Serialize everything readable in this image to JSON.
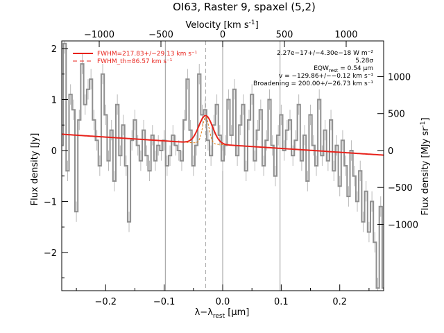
{
  "chart_data": {
    "type": "line",
    "title": "OI63, Raster 9, spaxel (5,2)",
    "xlabel": "λ−λ",
    "xlabel_sub": "rest",
    "xlabel_unit": "[μm]",
    "ylabel_left": "Flux density [Jy]",
    "ylabel_right": "Flux density [MJy sr",
    "ylabel_right_sup": "-1",
    "ylabel_right_tail": "]",
    "x2label": "Velocity [km s",
    "x2label_sup": "-1",
    "x2label_tail": "]",
    "xlim": [
      -0.275,
      0.275
    ],
    "ylim": [
      -2.75,
      2.15
    ],
    "x_ticks": [
      {
        "v": -0.2,
        "label": "−0.2"
      },
      {
        "v": -0.1,
        "label": "−0.1"
      },
      {
        "v": 0.0,
        "label": "0.0"
      },
      {
        "v": 0.1,
        "label": "0.1"
      },
      {
        "v": 0.2,
        "label": "0.2"
      }
    ],
    "y_ticks": [
      {
        "v": 2,
        "label": "2"
      },
      {
        "v": 1,
        "label": "1"
      },
      {
        "v": 0,
        "label": "0"
      },
      {
        "v": -1,
        "label": "−1"
      },
      {
        "v": -2,
        "label": "−2"
      }
    ],
    "x2_ticks": [
      {
        "v": -1000,
        "label": "−1000"
      },
      {
        "v": -500,
        "label": "−500"
      },
      {
        "v": 0,
        "label": "0"
      },
      {
        "v": 500,
        "label": "500"
      },
      {
        "v": 1000,
        "label": "1000"
      }
    ],
    "x2_per_micron": 4740,
    "y2_ticks": [
      {
        "v": 1000,
        "label": "1000"
      },
      {
        "v": 500,
        "label": "500"
      },
      {
        "v": 0,
        "label": "0"
      },
      {
        "v": -500,
        "label": "−500"
      },
      {
        "v": -1000,
        "label": "−1000"
      }
    ],
    "y2_per_jy": 690,
    "vertical_lines": [
      -0.098,
      0.0,
      0.098
    ],
    "dashed_line": -0.029,
    "legend": [
      {
        "label": "FWHM=217.83+/−29.13 km s⁻¹",
        "style": "solid",
        "color": "#e8221b"
      },
      {
        "label": "FWHM_th=86.57 km s⁻¹",
        "style": "dashed",
        "color": "#e8221b"
      }
    ],
    "annotations": [
      "2.27e−17+/−4.30e−18 W m⁻²",
      "5.28σ",
      "EQW",
      "rest",
      " = 0.54 μm",
      "v = −129.86+/−−0.12 km s⁻¹",
      "Broadening = 200.00+/−26.73 km s⁻¹"
    ],
    "spectrum": {
      "name": "data",
      "x": [
        -0.275,
        -0.27,
        -0.265,
        -0.26,
        -0.255,
        -0.25,
        -0.245,
        -0.24,
        -0.235,
        -0.23,
        -0.225,
        -0.22,
        -0.215,
        -0.21,
        -0.205,
        -0.2,
        -0.195,
        -0.19,
        -0.185,
        -0.18,
        -0.175,
        -0.17,
        -0.165,
        -0.16,
        -0.155,
        -0.15,
        -0.145,
        -0.14,
        -0.135,
        -0.13,
        -0.125,
        -0.12,
        -0.115,
        -0.11,
        -0.105,
        -0.1,
        -0.095,
        -0.09,
        -0.085,
        -0.08,
        -0.075,
        -0.07,
        -0.065,
        -0.06,
        -0.055,
        -0.05,
        -0.045,
        -0.04,
        -0.035,
        -0.03,
        -0.025,
        -0.02,
        -0.015,
        -0.01,
        -0.005,
        0.0,
        0.005,
        0.01,
        0.015,
        0.02,
        0.025,
        0.03,
        0.035,
        0.04,
        0.045,
        0.05,
        0.055,
        0.06,
        0.065,
        0.07,
        0.075,
        0.08,
        0.085,
        0.09,
        0.095,
        0.1,
        0.105,
        0.11,
        0.115,
        0.12,
        0.125,
        0.13,
        0.135,
        0.14,
        0.145,
        0.15,
        0.155,
        0.16,
        0.165,
        0.17,
        0.175,
        0.18,
        0.185,
        0.19,
        0.195,
        0.2,
        0.205,
        0.21,
        0.215,
        0.22,
        0.225,
        0.23,
        0.235,
        0.24,
        0.245,
        0.25,
        0.255,
        0.26,
        0.265,
        0.27,
        0.275
      ],
      "y": [
        0.1,
        2.1,
        -0.4,
        1.1,
        0.8,
        -1.2,
        0.6,
        1.7,
        0.9,
        1.2,
        1.4,
        0.6,
        0.2,
        -0.3,
        1.5,
        0.7,
        -0.2,
        0.4,
        -0.6,
        0.9,
        -0.1,
        0.5,
        -0.3,
        -1.4,
        0.2,
        0.6,
        0.1,
        -0.2,
        0.4,
        -0.1,
        -0.4,
        0.3,
        -0.2,
        0.1,
        0.0,
        0.2,
        -0.3,
        -0.1,
        0.3,
        0.1,
        0.0,
        -0.2,
        0.6,
        1.4,
        0.4,
        -0.3,
        0.1,
        1.5,
        0.7,
        0.8,
        0.2,
        -0.1,
        0.5,
        0.9,
        0.3,
        -0.2,
        0.1,
        1.0,
        0.3,
        1.2,
        -0.1,
        0.5,
        0.9,
        -0.4,
        0.6,
        1.1,
        -0.2,
        0.4,
        0.8,
        -0.3,
        0.2,
        1.0,
        0.1,
        -0.5,
        0.3,
        0.7,
        0.0,
        0.4,
        0.6,
        -0.1,
        0.2,
        0.9,
        -0.2,
        0.3,
        -0.6,
        0.7,
        0.1,
        -0.3,
        1.0,
        -0.1,
        0.4,
        -0.2,
        0.6,
        -0.4,
        0.1,
        -0.7,
        0.2,
        -0.3,
        -0.9,
        0.0,
        -0.5,
        -1.0,
        -0.4,
        -1.4,
        -0.8,
        -1.6,
        -1.0,
        -1.8,
        -2.7,
        -1.1,
        -2.7
      ],
      "yerr": 0.2
    },
    "continuum": {
      "name": "fit",
      "x": [
        -0.275,
        0.275
      ],
      "y": [
        0.32,
        -0.09
      ]
    },
    "gaussian_fit": {
      "center": -0.029,
      "amplitude": 0.55,
      "sigma": 0.0118
    },
    "thermal_fit": {
      "center": -0.029,
      "amplitude": 0.52,
      "sigma": 0.0055
    }
  }
}
